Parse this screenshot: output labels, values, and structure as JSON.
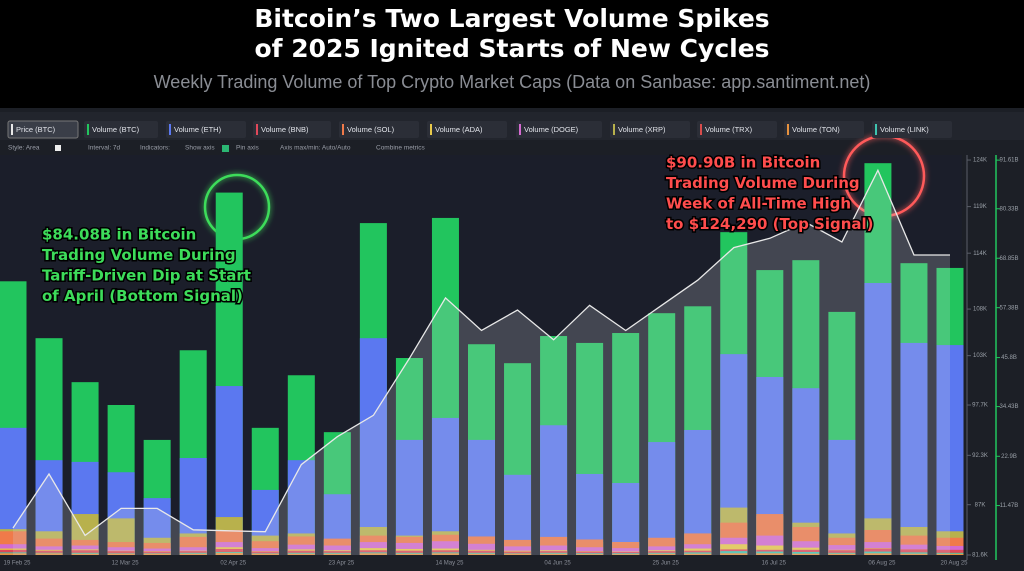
{
  "header": {
    "title_lines": [
      "Bitcoin’s Two Largest Volume Spikes",
      "of 2025 Ignited Starts of New Cycles"
    ],
    "subtitle": "Weekly Trading Volume of Top Crypto Market Caps (Data on Sanbase: app.santiment.net)"
  },
  "settings_bar": [
    "Style: Area",
    "Interval: 7d",
    "Indicators:",
    "Show axis",
    "Pin axis",
    "Axis max/min: Auto/Auto",
    "Combine metrics"
  ],
  "chart_data": {
    "type": "bar",
    "barmode": "overlay",
    "categories": [
      "19 Feb 25",
      null,
      null,
      "12 Mar 25",
      null,
      null,
      "02 Apr 25",
      null,
      null,
      "23 Apr 25",
      null,
      null,
      "14 May 25",
      null,
      null,
      "04 Jun 25",
      null,
      null,
      "25 Jun 25",
      null,
      null,
      "16 Jul 25",
      null,
      null,
      "06 Aug 25",
      null,
      "20 Aug 25"
    ],
    "ylim": [
      0,
      92.8
    ],
    "yticks": [
      {
        "value": 11.47,
        "label": "11.47B"
      },
      {
        "value": 22.9,
        "label": "22.9B"
      },
      {
        "value": 34.43,
        "label": "34.43B"
      },
      {
        "value": 45.8,
        "label": "45.8B"
      },
      {
        "value": 57.38,
        "label": "57.38B"
      },
      {
        "value": 68.85,
        "label": "68.85B"
      },
      {
        "value": 80.33,
        "label": "80.33B"
      },
      {
        "value": 91.61,
        "label": "91.61B"
      }
    ],
    "y2lim": [
      81600,
      124540
    ],
    "y2ticks": [
      {
        "value": 81600,
        "label": "81.6K"
      },
      {
        "value": 87000,
        "label": "87K"
      },
      {
        "value": 92300,
        "label": "92.3K"
      },
      {
        "value": 97700,
        "label": "97.7K"
      },
      {
        "value": 103000,
        "label": "103K"
      },
      {
        "value": 108000,
        "label": "108K"
      },
      {
        "value": 114000,
        "label": "114K"
      },
      {
        "value": 119000,
        "label": "119K"
      },
      {
        "value": 124000,
        "label": "124K"
      }
    ],
    "series": [
      {
        "name": "Price (BTC)",
        "type": "line",
        "axis": "y2",
        "color": "#e8e8e8",
        "values": [
          84500,
          90300,
          83700,
          86600,
          86600,
          84300,
          84200,
          84100,
          91300,
          94300,
          96600,
          102700,
          109200,
          105700,
          107900,
          104700,
          108400,
          105700,
          108400,
          111100,
          114600,
          115600,
          117300,
          115200,
          122900,
          113800,
          113800
        ]
      },
      {
        "name": "Volume (BTC)",
        "color": "#22c55e",
        "values": [
          63.5,
          50.3,
          40.1,
          34.8,
          26.7,
          47.5,
          84.08,
          29.5,
          41.7,
          28.5,
          77.0,
          45.7,
          78.2,
          48.9,
          44.5,
          50.8,
          49.2,
          51.5,
          56.1,
          57.7,
          74.9,
          66.1,
          68.4,
          56.4,
          90.9,
          67.7,
          66.6
        ]
      },
      {
        "name": "Volume (ETH)",
        "color": "#5b78f0",
        "values": [
          29.5,
          22.0,
          21.6,
          19.2,
          13.2,
          22.5,
          39.2,
          15.1,
          22.0,
          14.1,
          50.3,
          26.7,
          31.8,
          26.7,
          18.6,
          30.1,
          18.8,
          16.7,
          26.2,
          29.0,
          46.6,
          41.3,
          38.7,
          26.7,
          63.1,
          49.2,
          48.7
        ]
      },
      {
        "name": "Volume (BNB)",
        "color": "#e0485a",
        "values": [
          1.2,
          1.0,
          1.1,
          0.9,
          0.8,
          0.9,
          1.4,
          0.8,
          1.0,
          0.9,
          1.1,
          1.0,
          1.1,
          1.0,
          0.8,
          0.9,
          0.8,
          0.7,
          0.9,
          1.0,
          1.3,
          1.2,
          1.2,
          1.1,
          1.5,
          1.3,
          1.2
        ]
      },
      {
        "name": "Volume (SOL)",
        "color": "#f07a4a",
        "values": [
          5.5,
          3.8,
          3.5,
          3.0,
          2.8,
          4.2,
          5.8,
          3.2,
          4.3,
          3.8,
          4.5,
          4.2,
          4.7,
          4.3,
          3.5,
          4.2,
          3.6,
          3.0,
          4.0,
          5.0,
          7.5,
          9.5,
          6.5,
          4.0,
          5.8,
          4.5,
          4.0
        ]
      },
      {
        "name": "Volume (ADA)",
        "color": "#e8c94a",
        "values": [
          1.5,
          1.2,
          1.3,
          1.0,
          0.9,
          1.0,
          1.8,
          0.9,
          1.3,
          1.1,
          1.6,
          1.4,
          1.5,
          1.2,
          1.0,
          1.1,
          0.9,
          0.8,
          1.1,
          1.5,
          2.5,
          2.2,
          1.7,
          1.2,
          1.6,
          1.3,
          1.1
        ]
      },
      {
        "name": "Volume (DOGE)",
        "color": "#d46ad0",
        "values": [
          2.5,
          2.0,
          2.2,
          1.8,
          1.5,
          1.8,
          3.0,
          1.6,
          2.4,
          2.2,
          3.0,
          2.8,
          3.2,
          2.6,
          2.0,
          2.2,
          1.8,
          1.6,
          2.0,
          2.5,
          4.0,
          4.5,
          3.2,
          2.3,
          3.0,
          2.4,
          2.1
        ]
      },
      {
        "name": "Volume (XRP)",
        "color": "#b8b14c",
        "values": [
          6.0,
          5.5,
          9.5,
          8.5,
          4.0,
          5.0,
          8.8,
          4.5,
          5.0,
          3.5,
          6.5,
          4.5,
          5.5,
          3.5,
          3.0,
          3.5,
          3.0,
          3.0,
          3.5,
          5.0,
          11.0,
          9.0,
          7.5,
          5.0,
          8.5,
          6.5,
          5.5
        ]
      },
      {
        "name": "Volume (TRX)",
        "color": "#d84c4c",
        "values": [
          0.8,
          0.7,
          0.7,
          0.6,
          0.5,
          0.6,
          0.9,
          0.5,
          0.7,
          0.6,
          0.7,
          0.7,
          0.8,
          0.6,
          0.6,
          0.6,
          0.5,
          0.5,
          0.6,
          0.7,
          0.9,
          0.8,
          0.8,
          0.7,
          0.9,
          0.8,
          0.7
        ]
      },
      {
        "name": "Volume (TON)",
        "color": "#e6913e",
        "values": [
          0.4,
          0.4,
          0.3,
          0.3,
          0.3,
          0.3,
          0.5,
          0.3,
          0.3,
          0.3,
          0.4,
          0.3,
          0.4,
          0.3,
          0.3,
          0.3,
          0.2,
          0.2,
          0.3,
          0.3,
          0.4,
          0.4,
          0.3,
          0.3,
          0.4,
          0.3,
          0.3
        ]
      },
      {
        "name": "Volume (LINK)",
        "color": "#3fc4b0",
        "values": [
          0.6,
          0.5,
          0.5,
          0.4,
          0.4,
          0.5,
          0.7,
          0.4,
          0.5,
          0.5,
          0.6,
          0.5,
          0.6,
          0.5,
          0.4,
          0.5,
          0.4,
          0.4,
          0.5,
          0.6,
          0.9,
          0.8,
          0.7,
          0.5,
          0.8,
          0.6,
          0.5
        ]
      }
    ],
    "annotations": [
      {
        "color": "#3ddc5a",
        "lines": [
          "$84.08B in Bitcoin",
          "Trading Volume During",
          "Tariff-Driven Dip at Start",
          "of April (Bottom Signal)"
        ]
      },
      {
        "color": "#ff4d4d",
        "lines": [
          "$90.90B in Bitcoin",
          "Trading Volume During",
          "Week of All-Time High",
          "to $124,290 (Top Signal)"
        ]
      }
    ]
  }
}
